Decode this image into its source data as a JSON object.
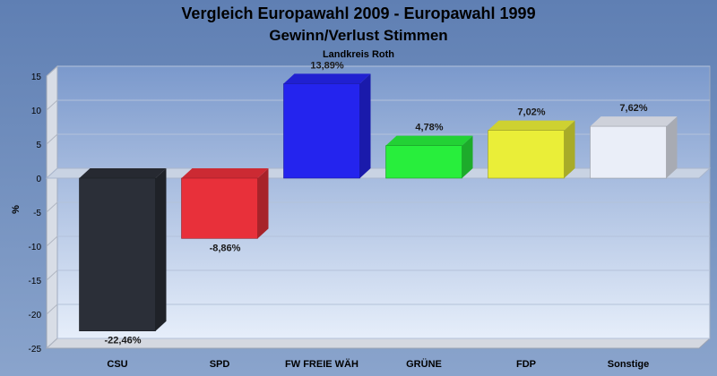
{
  "chart_data": {
    "type": "bar",
    "title": "Vergleich Europawahl 2009 - Europawahl 1999",
    "subtitle": "Gewinn/Verlust Stimmen",
    "subtitle2": "Landkreis Roth",
    "ylabel": "%",
    "ylim": [
      -25,
      15
    ],
    "yticks": [
      15,
      10,
      5,
      0,
      -5,
      -10,
      -15,
      -20,
      -25
    ],
    "grid": true,
    "categories": [
      "CSU",
      "SPD",
      "FW FREIE WÄH",
      "GRÜNE",
      "FDP",
      "Sonstige"
    ],
    "values": [
      -22.46,
      -8.86,
      13.89,
      4.78,
      7.02,
      7.62
    ],
    "value_labels": [
      "-22,46%",
      "-8,86%",
      "13,89%",
      "4,78%",
      "7,02%",
      "7,62%"
    ],
    "colors": [
      "#2b2f38",
      "#e8303a",
      "#2424ee",
      "#28ee3c",
      "#eaee38",
      "#eaeef8"
    ]
  }
}
